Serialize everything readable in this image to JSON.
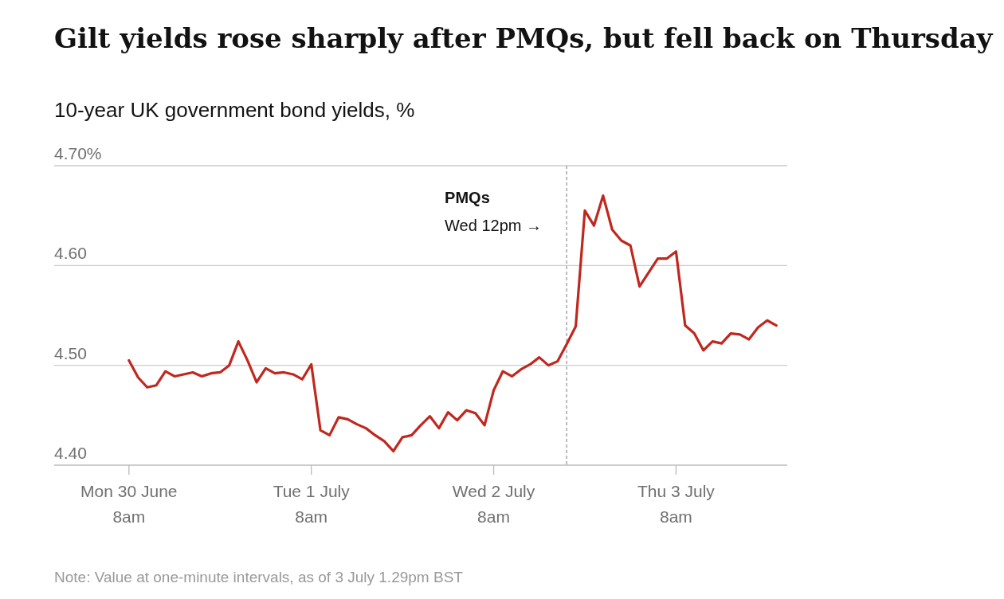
{
  "chart_data": {
    "type": "line",
    "title": "Gilt yields rose sharply after PMQs, but fell back on Thursday",
    "subtitle": "10-year UK government bond yields, %",
    "categories": [
      "Mon 30 June\n8am",
      null,
      null,
      null,
      null,
      null,
      null,
      null,
      null,
      null,
      null,
      null,
      null,
      null,
      null,
      null,
      null,
      null,
      null,
      null,
      "Tue 1 July\n8am",
      null,
      null,
      null,
      null,
      null,
      null,
      null,
      null,
      null,
      null,
      null,
      null,
      null,
      null,
      null,
      null,
      null,
      null,
      null,
      "Wed 2 July\n8am",
      null,
      null,
      null,
      null,
      null,
      null,
      null,
      null,
      null,
      null,
      null,
      null,
      null,
      null,
      null,
      null,
      null,
      null,
      null,
      "Thu 3 July\n8am",
      null,
      null,
      null,
      null,
      null,
      null,
      null,
      null,
      null,
      null,
      null
    ],
    "series": [
      {
        "color": "#c0281e",
        "values": [
          4.505,
          4.488,
          4.478,
          4.48,
          4.494,
          4.489,
          4.491,
          4.493,
          4.489,
          4.492,
          4.493,
          4.5,
          4.524,
          4.505,
          4.483,
          4.497,
          4.492,
          4.493,
          4.491,
          4.486,
          4.501,
          4.435,
          4.43,
          4.448,
          4.446,
          4.441,
          4.437,
          4.43,
          4.424,
          4.414,
          4.428,
          4.43,
          4.44,
          4.449,
          4.437,
          4.453,
          4.445,
          4.455,
          4.452,
          4.44,
          4.475,
          4.494,
          4.489,
          4.496,
          4.501,
          4.508,
          4.5,
          4.504,
          4.521,
          4.539,
          4.655,
          4.64,
          4.67,
          4.636,
          4.625,
          4.62,
          4.579,
          4.593,
          4.607,
          4.607,
          4.614,
          4.54,
          4.532,
          4.515,
          4.524,
          4.522,
          4.532,
          4.531,
          4.526,
          4.538,
          4.545,
          4.54
        ]
      }
    ],
    "ylim": [
      4.4,
      4.7
    ],
    "yticks": [
      {
        "value": 4.4,
        "label": "4.40"
      },
      {
        "value": 4.5,
        "label": "4.50"
      },
      {
        "value": 4.6,
        "label": "4.60"
      },
      {
        "value": 4.7,
        "label": "4.70%"
      }
    ],
    "grid": "y",
    "line_style": "solid",
    "annotations": [
      "PMQs",
      "Wed 12pm →",
      "Note: Value at one-minute intervals, as of 3 July 1.29pm BST"
    ]
  }
}
